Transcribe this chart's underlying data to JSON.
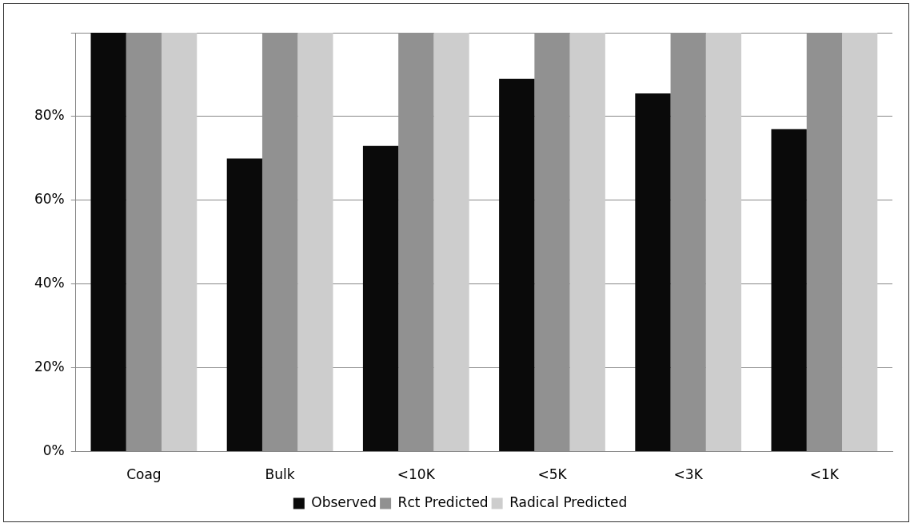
{
  "chart_data": {
    "type": "bar",
    "categories": [
      "Coag",
      "Bulk",
      "<10K",
      "<5K",
      "<3K",
      "<1K"
    ],
    "series": [
      {
        "name": "Observed",
        "color": "#0a0a0a",
        "values": [
          100,
          70,
          73,
          89,
          85.5,
          77
        ]
      },
      {
        "name": "Rct Predicted",
        "color": "#919191",
        "values": [
          100,
          100,
          100,
          100,
          100,
          100
        ]
      },
      {
        "name": "Radical Predicted",
        "color": "#cdcdcd",
        "values": [
          100,
          100,
          100,
          100,
          100,
          100
        ]
      }
    ],
    "ylim": [
      0,
      100
    ],
    "yticks": [
      {
        "value": 0,
        "label": "0%"
      },
      {
        "value": 20,
        "label": "20%"
      },
      {
        "value": 40,
        "label": "40%"
      },
      {
        "value": 60,
        "label": "60%"
      },
      {
        "value": 80,
        "label": "80%"
      },
      {
        "value": 100,
        "label": null
      }
    ],
    "grid": "y",
    "legend": "bottom"
  }
}
